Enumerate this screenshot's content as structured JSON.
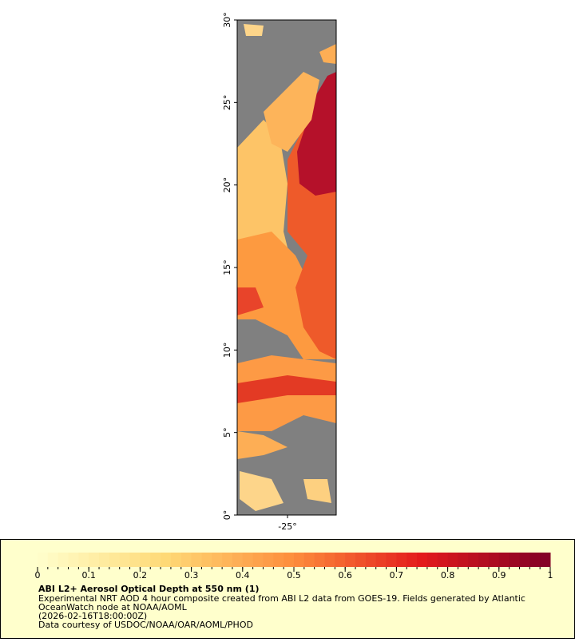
{
  "map": {
    "lat_ticks": [
      {
        "value": 0,
        "label": "0°"
      },
      {
        "value": 5,
        "label": "5°"
      },
      {
        "value": 10,
        "label": "10°"
      },
      {
        "value": 15,
        "label": "15°"
      },
      {
        "value": 20,
        "label": "20°"
      },
      {
        "value": 25,
        "label": "25°"
      },
      {
        "value": 30,
        "label": "30°"
      }
    ],
    "lon_ticks": [
      {
        "value": -25,
        "label": "-25°"
      }
    ]
  },
  "colorbar": {
    "ticks": [
      0,
      0.1,
      0.2,
      0.3,
      0.4,
      0.5,
      0.6,
      0.7,
      0.8,
      0.9,
      1
    ]
  },
  "legend": {
    "title": "ABI L2+ Aerosol Optical Depth at 550 nm (1)",
    "lines": [
      "Experimental NRT AOD 4 hour composite created from ABI L2 data from GOES-19. Fields generated by Atlantic",
      "OceanWatch node at NOAA/AOML",
      "(2026-02-16T18:00:00Z)",
      "Data courtesy of USDOC/NOAA/OAR/AOML/PHOD"
    ]
  }
}
